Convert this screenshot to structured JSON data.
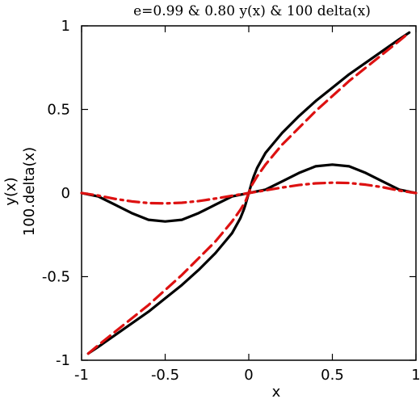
{
  "chart_data": {
    "type": "line",
    "title": "e=0.99 & 0.80 y(x) & 100 delta(x)",
    "xlabel": "x",
    "ylabel_lines": [
      "y(x)",
      "100.delta(x)"
    ],
    "xlim": [
      -1,
      1
    ],
    "ylim": [
      -1,
      1
    ],
    "xticks": [
      -1,
      -0.5,
      0,
      0.5,
      1
    ],
    "xtick_labels": [
      "-1",
      "-0.5",
      "0",
      "0.5",
      "1"
    ],
    "yticks": [
      -1,
      -0.5,
      0,
      0.5,
      1
    ],
    "ytick_labels": [
      "-1",
      "-0.5",
      "0",
      "0.5",
      "1"
    ],
    "grid": false,
    "legend": "none",
    "series": [
      {
        "color": "#000000",
        "dash": "solid",
        "x": [
          -0.96,
          -0.9,
          -0.8,
          -0.7,
          -0.6,
          -0.5,
          -0.4,
          -0.3,
          -0.2,
          -0.15,
          -0.1,
          -0.05,
          -0.03,
          -0.02,
          -0.01,
          0,
          0.01,
          0.02,
          0.03,
          0.05,
          0.1,
          0.15,
          0.2,
          0.3,
          0.4,
          0.5,
          0.6,
          0.7,
          0.8,
          0.9,
          0.96
        ],
        "y": [
          -0.96,
          -0.92,
          -0.85,
          -0.78,
          -0.71,
          -0.63,
          -0.55,
          -0.46,
          -0.36,
          -0.3,
          -0.24,
          -0.15,
          -0.1,
          -0.07,
          -0.035,
          0,
          0.035,
          0.07,
          0.1,
          0.15,
          0.24,
          0.3,
          0.36,
          0.46,
          0.55,
          0.63,
          0.71,
          0.78,
          0.85,
          0.92,
          0.96
        ]
      },
      {
        "color": "#dd1111",
        "dash": "dashed",
        "x": [
          -0.96,
          -0.9,
          -0.8,
          -0.7,
          -0.6,
          -0.5,
          -0.4,
          -0.3,
          -0.2,
          -0.15,
          -0.1,
          -0.05,
          -0.02,
          0,
          0.02,
          0.05,
          0.1,
          0.15,
          0.2,
          0.3,
          0.4,
          0.5,
          0.6,
          0.7,
          0.8,
          0.9,
          0.96
        ],
        "y": [
          -0.96,
          -0.91,
          -0.83,
          -0.75,
          -0.67,
          -0.58,
          -0.49,
          -0.39,
          -0.29,
          -0.23,
          -0.17,
          -0.1,
          -0.05,
          0,
          0.05,
          0.1,
          0.17,
          0.23,
          0.29,
          0.39,
          0.49,
          0.58,
          0.67,
          0.75,
          0.83,
          0.91,
          0.96
        ]
      },
      {
        "color": "#000000",
        "dash": "solid",
        "x": [
          -1,
          -0.9,
          -0.8,
          -0.7,
          -0.6,
          -0.5,
          -0.4,
          -0.3,
          -0.2,
          -0.1,
          0,
          0.1,
          0.2,
          0.3,
          0.4,
          0.5,
          0.6,
          0.7,
          0.8,
          0.9,
          1
        ],
        "y": [
          0,
          -0.02,
          -0.07,
          -0.12,
          -0.16,
          -0.17,
          -0.16,
          -0.12,
          -0.07,
          -0.02,
          0,
          0.02,
          0.07,
          0.12,
          0.16,
          0.17,
          0.16,
          0.12,
          0.07,
          0.02,
          0
        ]
      },
      {
        "color": "#dd1111",
        "dash": "dashdot",
        "x": [
          -1,
          -0.9,
          -0.8,
          -0.7,
          -0.6,
          -0.5,
          -0.4,
          -0.3,
          -0.2,
          -0.1,
          0,
          0.1,
          0.2,
          0.3,
          0.4,
          0.5,
          0.6,
          0.7,
          0.8,
          0.9,
          1
        ],
        "y": [
          0,
          -0.015,
          -0.035,
          -0.05,
          -0.06,
          -0.062,
          -0.058,
          -0.048,
          -0.033,
          -0.016,
          0,
          0.016,
          0.033,
          0.048,
          0.058,
          0.062,
          0.06,
          0.05,
          0.035,
          0.015,
          0
        ]
      }
    ]
  }
}
